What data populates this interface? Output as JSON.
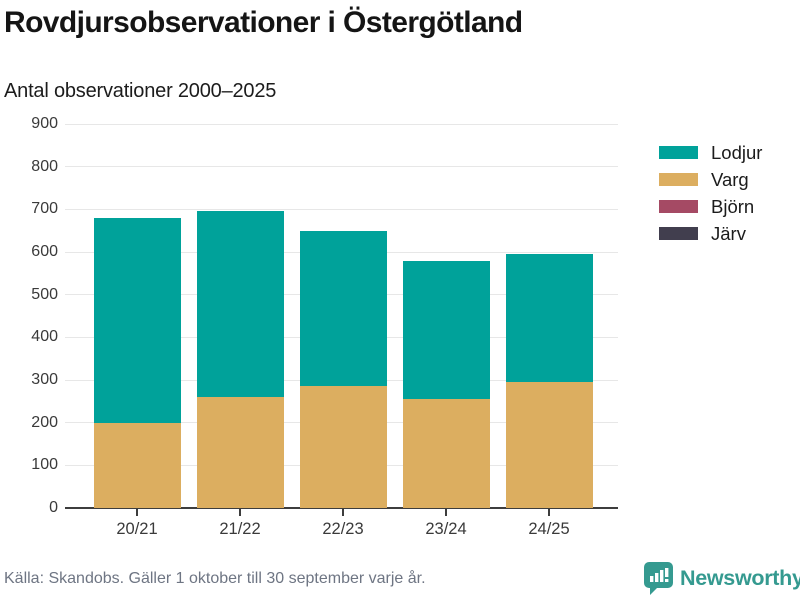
{
  "header": {
    "title": "Rovdjursobservationer i Östergötland",
    "subtitle": "Antal observationer 2000–2025"
  },
  "chart_data": {
    "type": "bar",
    "stacked": true,
    "title": "Rovdjursobservationer i Östergötland",
    "subtitle": "Antal observationer 2000–2025",
    "xlabel": "",
    "ylabel": "",
    "categories": [
      "20/21",
      "21/22",
      "22/23",
      "23/24",
      "24/25"
    ],
    "series": [
      {
        "name": "Lodjur",
        "color": "#00a29a",
        "values": [
          480,
          435,
          365,
          325,
          300
        ]
      },
      {
        "name": "Varg",
        "color": "#dcae60",
        "values": [
          200,
          260,
          285,
          255,
          295
        ]
      },
      {
        "name": "Björn",
        "color": "#a54a64",
        "values": [
          0,
          0,
          0,
          0,
          0
        ]
      },
      {
        "name": "Järv",
        "color": "#413e4e",
        "values": [
          0,
          0,
          0,
          0,
          0
        ]
      }
    ],
    "stack_order_bottom_to_top": [
      "Järv",
      "Björn",
      "Varg",
      "Lodjur"
    ],
    "ylim": [
      0,
      900
    ],
    "yticks": [
      0,
      100,
      200,
      300,
      400,
      500,
      600,
      700,
      800,
      900
    ],
    "grid": true,
    "legend_position": "right"
  },
  "footer": {
    "source": "Källa: Skandobs. Gäller 1 oktober till 30 september varje år.",
    "brand": "Newsworthy",
    "brand_color": "#359a90"
  }
}
